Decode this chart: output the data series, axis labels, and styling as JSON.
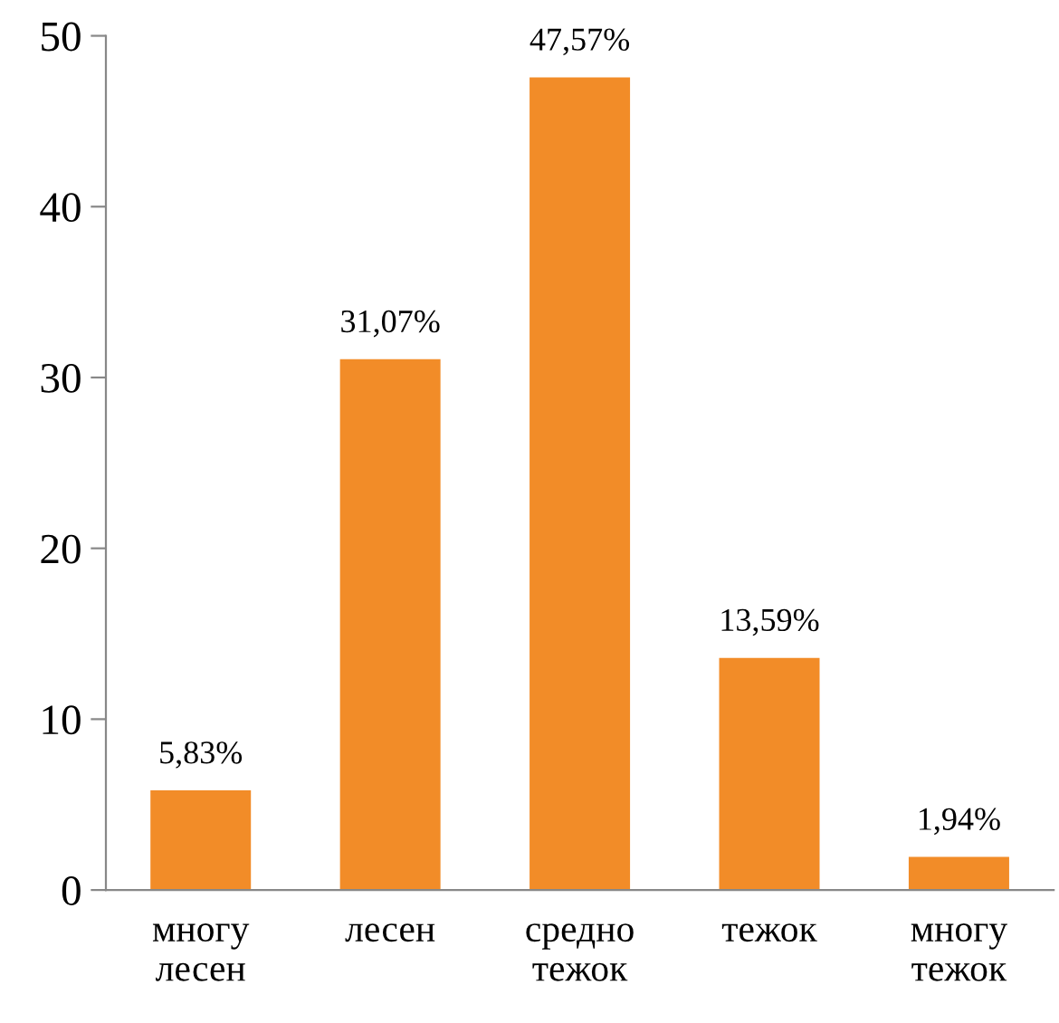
{
  "chart_data": {
    "type": "bar",
    "categories": [
      "многу\nлесен",
      "лесен",
      "средно\nтежок",
      "тежок",
      "многу\nтежок"
    ],
    "values": [
      5.83,
      31.07,
      47.57,
      13.59,
      1.94
    ],
    "value_labels": [
      "5,83%",
      "31,07%",
      "47,57%",
      "13,59%",
      "1,94%"
    ],
    "color": "#f28c28",
    "ylim": [
      0,
      50
    ],
    "yticks": [
      0,
      10,
      20,
      30,
      40,
      50
    ],
    "grid": false
  }
}
